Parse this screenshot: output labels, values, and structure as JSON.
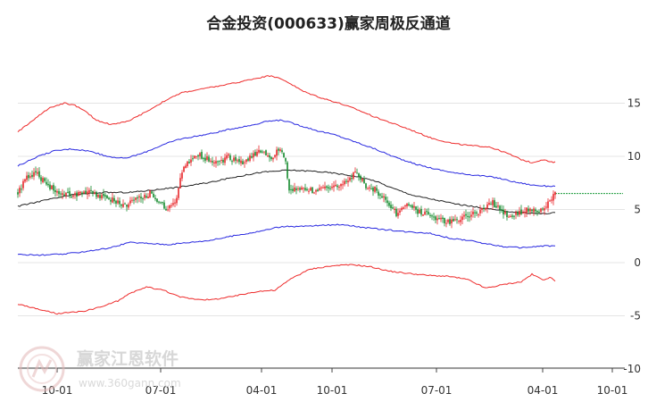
{
  "chart_data": {
    "type": "candlestick",
    "title": "合金投资(000633)赢家周极反通道",
    "x_tick_labels": [
      "10-01",
      "07-01",
      "04-01",
      "10-01",
      "07-01",
      "04-01",
      "10-01"
    ],
    "y_ticks": [
      15,
      10,
      5,
      0,
      -5,
      -10
    ],
    "ylim": [
      -10,
      18
    ],
    "grid": "horizontal",
    "colors": {
      "up": "#e8262a",
      "down": "#138a2c",
      "outer_band": "#ee2b2b",
      "inner_band": "#2828e0",
      "middle_line": "#222222",
      "last_price_line": "#1a9a3a"
    },
    "price_path": [
      [
        0,
        6.5
      ],
      [
        5,
        8.0
      ],
      [
        10,
        8.4
      ],
      [
        16,
        7.5
      ],
      [
        22,
        6.5
      ],
      [
        30,
        6.3
      ],
      [
        40,
        6.7
      ],
      [
        48,
        6.2
      ],
      [
        55,
        5.8
      ],
      [
        60,
        5.3
      ],
      [
        66,
        6.0
      ],
      [
        74,
        6.5
      ],
      [
        80,
        5.6
      ],
      [
        84,
        5.0
      ],
      [
        88,
        5.6
      ],
      [
        91,
        7.8
      ],
      [
        94,
        9.3
      ],
      [
        100,
        10.2
      ],
      [
        106,
        9.8
      ],
      [
        112,
        9.4
      ],
      [
        118,
        10.0
      ],
      [
        124,
        9.3
      ],
      [
        130,
        9.9
      ],
      [
        136,
        10.5
      ],
      [
        142,
        9.8
      ],
      [
        147,
        10.8
      ],
      [
        150,
        9.4
      ],
      [
        152,
        6.8
      ],
      [
        158,
        7.0
      ],
      [
        165,
        6.8
      ],
      [
        172,
        6.9
      ],
      [
        180,
        7.4
      ],
      [
        186,
        8.0
      ],
      [
        190,
        8.5
      ],
      [
        195,
        7.2
      ],
      [
        200,
        6.9
      ],
      [
        206,
        5.8
      ],
      [
        212,
        4.6
      ],
      [
        218,
        5.6
      ],
      [
        224,
        4.8
      ],
      [
        230,
        4.6
      ],
      [
        236,
        4.1
      ],
      [
        242,
        3.8
      ],
      [
        248,
        4.1
      ],
      [
        254,
        4.5
      ],
      [
        260,
        4.9
      ],
      [
        266,
        5.6
      ],
      [
        272,
        4.8
      ],
      [
        276,
        4.3
      ],
      [
        282,
        4.8
      ],
      [
        288,
        5.1
      ],
      [
        294,
        4.8
      ],
      [
        298,
        5.8
      ],
      [
        301,
        6.5
      ]
    ],
    "upper_outer": [
      [
        0,
        12.3
      ],
      [
        10,
        13.6
      ],
      [
        18,
        14.6
      ],
      [
        26,
        15.0
      ],
      [
        32,
        14.8
      ],
      [
        38,
        14.2
      ],
      [
        44,
        13.4
      ],
      [
        52,
        13.0
      ],
      [
        62,
        13.3
      ],
      [
        72,
        14.2
      ],
      [
        82,
        15.2
      ],
      [
        92,
        16.0
      ],
      [
        102,
        16.3
      ],
      [
        112,
        16.6
      ],
      [
        122,
        16.9
      ],
      [
        132,
        17.3
      ],
      [
        142,
        17.6
      ],
      [
        150,
        17.1
      ],
      [
        160,
        16.1
      ],
      [
        170,
        15.5
      ],
      [
        180,
        15.0
      ],
      [
        190,
        14.4
      ],
      [
        200,
        13.7
      ],
      [
        210,
        13.1
      ],
      [
        220,
        12.5
      ],
      [
        232,
        11.7
      ],
      [
        244,
        11.2
      ],
      [
        254,
        11.0
      ],
      [
        264,
        10.9
      ],
      [
        274,
        10.3
      ],
      [
        282,
        9.7
      ],
      [
        288,
        9.4
      ],
      [
        294,
        9.7
      ],
      [
        300,
        9.4
      ],
      [
        302,
        9.5
      ]
    ],
    "upper_inner": [
      [
        0,
        9.1
      ],
      [
        10,
        9.9
      ],
      [
        20,
        10.5
      ],
      [
        30,
        10.7
      ],
      [
        40,
        10.5
      ],
      [
        50,
        10.0
      ],
      [
        60,
        9.8
      ],
      [
        70,
        10.3
      ],
      [
        80,
        11.0
      ],
      [
        90,
        11.6
      ],
      [
        100,
        11.9
      ],
      [
        110,
        12.2
      ],
      [
        120,
        12.6
      ],
      [
        130,
        12.9
      ],
      [
        140,
        13.3
      ],
      [
        148,
        13.4
      ],
      [
        158,
        12.9
      ],
      [
        168,
        12.4
      ],
      [
        178,
        12.0
      ],
      [
        190,
        11.3
      ],
      [
        200,
        10.7
      ],
      [
        210,
        10.0
      ],
      [
        222,
        9.3
      ],
      [
        234,
        8.8
      ],
      [
        246,
        8.4
      ],
      [
        258,
        8.2
      ],
      [
        268,
        8.0
      ],
      [
        278,
        7.6
      ],
      [
        288,
        7.3
      ],
      [
        296,
        7.2
      ],
      [
        302,
        7.2
      ]
    ],
    "middle": [
      [
        0,
        5.3
      ],
      [
        16,
        5.9
      ],
      [
        32,
        6.4
      ],
      [
        48,
        6.6
      ],
      [
        62,
        6.6
      ],
      [
        74,
        6.8
      ],
      [
        90,
        7.1
      ],
      [
        106,
        7.5
      ],
      [
        120,
        8.0
      ],
      [
        136,
        8.5
      ],
      [
        152,
        8.7
      ],
      [
        166,
        8.6
      ],
      [
        178,
        8.4
      ],
      [
        190,
        8.1
      ],
      [
        200,
        7.7
      ],
      [
        210,
        7.0
      ],
      [
        222,
        6.3
      ],
      [
        234,
        5.9
      ],
      [
        246,
        5.5
      ],
      [
        258,
        5.2
      ],
      [
        270,
        4.9
      ],
      [
        282,
        4.7
      ],
      [
        294,
        4.6
      ],
      [
        302,
        4.7
      ]
    ],
    "lower_inner": [
      [
        0,
        0.8
      ],
      [
        12,
        0.7
      ],
      [
        26,
        0.8
      ],
      [
        40,
        1.1
      ],
      [
        52,
        1.4
      ],
      [
        62,
        1.9
      ],
      [
        74,
        1.8
      ],
      [
        84,
        1.7
      ],
      [
        96,
        1.9
      ],
      [
        108,
        2.1
      ],
      [
        120,
        2.5
      ],
      [
        134,
        2.9
      ],
      [
        148,
        3.4
      ],
      [
        158,
        3.4
      ],
      [
        170,
        3.5
      ],
      [
        182,
        3.6
      ],
      [
        194,
        3.3
      ],
      [
        206,
        3.1
      ],
      [
        218,
        2.9
      ],
      [
        230,
        2.8
      ],
      [
        242,
        2.3
      ],
      [
        252,
        2.1
      ],
      [
        262,
        1.8
      ],
      [
        272,
        1.5
      ],
      [
        282,
        1.4
      ],
      [
        290,
        1.5
      ],
      [
        296,
        1.6
      ],
      [
        302,
        1.5
      ]
    ],
    "lower_outer": [
      [
        0,
        -3.9
      ],
      [
        12,
        -4.4
      ],
      [
        22,
        -4.8
      ],
      [
        36,
        -4.6
      ],
      [
        46,
        -4.2
      ],
      [
        56,
        -3.6
      ],
      [
        64,
        -2.8
      ],
      [
        72,
        -2.3
      ],
      [
        82,
        -2.6
      ],
      [
        90,
        -3.2
      ],
      [
        98,
        -3.4
      ],
      [
        108,
        -3.5
      ],
      [
        120,
        -3.2
      ],
      [
        134,
        -2.7
      ],
      [
        144,
        -2.6
      ],
      [
        154,
        -1.4
      ],
      [
        164,
        -0.6
      ],
      [
        176,
        -0.3
      ],
      [
        188,
        -0.2
      ],
      [
        198,
        -0.4
      ],
      [
        208,
        -0.8
      ],
      [
        218,
        -1.0
      ],
      [
        230,
        -1.2
      ],
      [
        242,
        -1.3
      ],
      [
        252,
        -1.6
      ],
      [
        262,
        -2.4
      ],
      [
        274,
        -2.0
      ],
      [
        282,
        -1.8
      ],
      [
        288,
        -1.1
      ],
      [
        294,
        -1.6
      ],
      [
        298,
        -1.4
      ],
      [
        302,
        -1.8
      ]
    ]
  },
  "watermark": {
    "text": "赢家江恩软件",
    "url": "www.360gann.com"
  }
}
